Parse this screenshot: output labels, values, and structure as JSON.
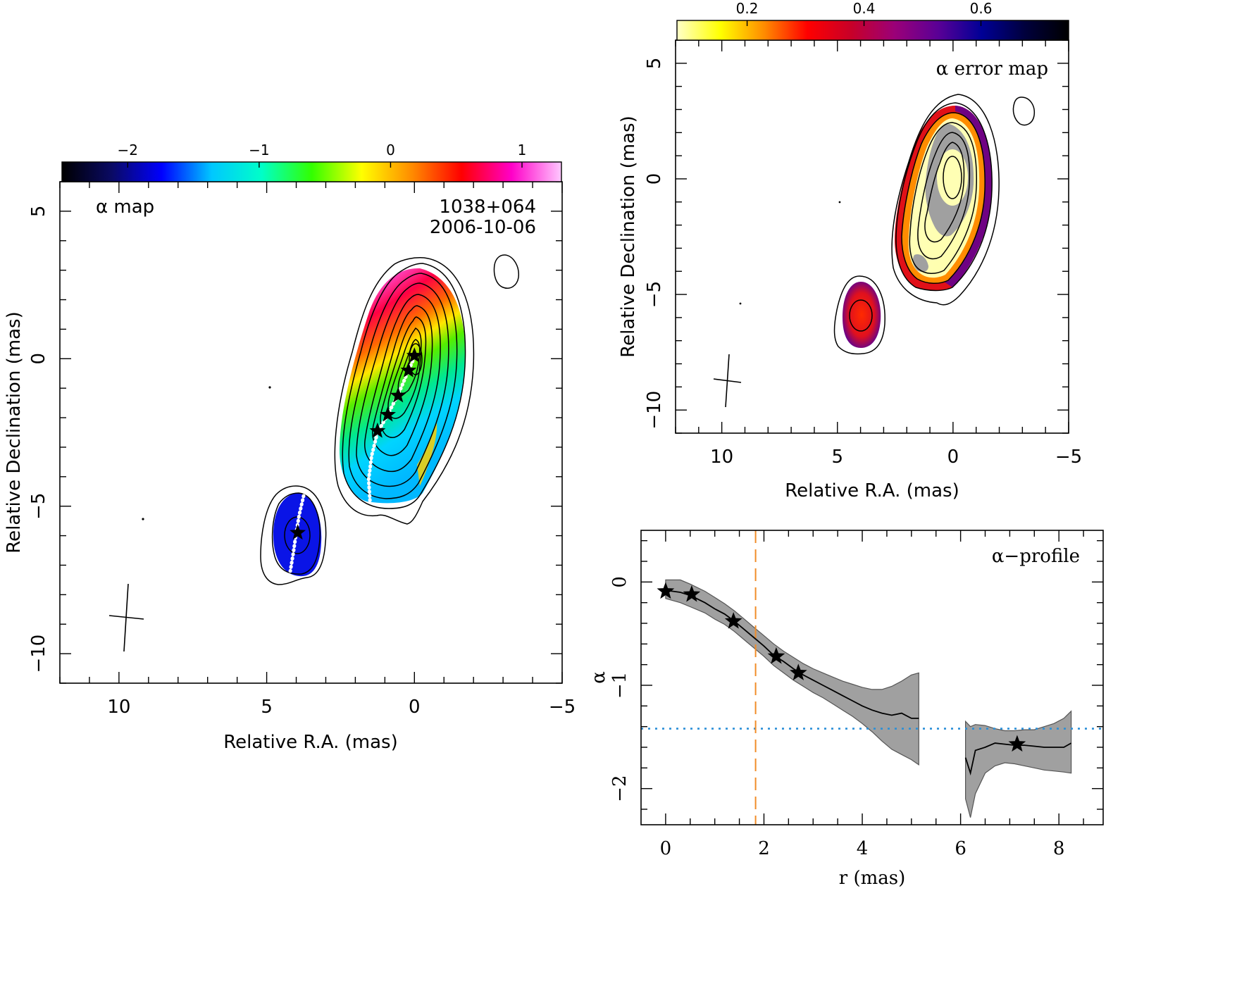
{
  "chart_data": [
    {
      "type": "heatmap",
      "panel": "alpha-map",
      "label": "α map",
      "source": "1038+064",
      "date": "2006-10-06",
      "xlabel": "Relative R.A. (mas)",
      "ylabel": "Relative Declination (mas)",
      "xlim": [
        12,
        -5
      ],
      "ylim": [
        -11,
        6
      ],
      "xticks": [
        10,
        5,
        0,
        -5
      ],
      "yticks": [
        5,
        0,
        -5,
        -10
      ],
      "colorbar": {
        "range": [
          -2.5,
          1.3
        ],
        "ticks": [
          -2,
          -1,
          0,
          1
        ],
        "stops": [
          "#000000",
          "#0a0a64",
          "#0000ff",
          "#00c8ff",
          "#00ffc8",
          "#32ff00",
          "#ffff00",
          "#ff8c00",
          "#ff0000",
          "#ff00c8",
          "#ffc8ff"
        ]
      },
      "stars": [
        [
          0.0,
          0.1
        ],
        [
          0.2,
          -0.4
        ],
        [
          0.55,
          -1.25
        ],
        [
          0.9,
          -1.9
        ],
        [
          1.25,
          -2.45
        ],
        [
          3.95,
          -5.9
        ]
      ],
      "ridge_line": [
        [
          0.0,
          0.05
        ],
        [
          0.2,
          -0.4
        ],
        [
          0.5,
          -1.1
        ],
        [
          0.9,
          -1.9
        ],
        [
          1.25,
          -2.5
        ],
        [
          1.45,
          -3.3
        ],
        [
          1.55,
          -4.1
        ],
        [
          1.5,
          -4.9
        ]
      ],
      "ridge_line_2": [
        [
          3.75,
          -4.65
        ],
        [
          3.9,
          -5.3
        ],
        [
          4.0,
          -5.9
        ],
        [
          4.1,
          -6.6
        ],
        [
          4.2,
          -7.2
        ]
      ]
    },
    {
      "type": "heatmap",
      "panel": "alpha-error-map",
      "label": "α error map",
      "xlabel": "Relative R.A. (mas)",
      "ylabel": "Relative Declination (mas)",
      "xlim": [
        12,
        -5
      ],
      "ylim": [
        -11,
        6
      ],
      "xticks": [
        10,
        5,
        0,
        -5
      ],
      "yticks": [
        5,
        0,
        -5,
        -10
      ],
      "colorbar": {
        "range": [
          0.08,
          0.75
        ],
        "ticks": [
          0.2,
          0.4,
          0.6
        ],
        "stops": [
          "#ffffc8",
          "#ffff00",
          "#ff8c00",
          "#ff0000",
          "#c80028",
          "#9b0078",
          "#5a0096",
          "#000096",
          "#00003c",
          "#000000"
        ]
      }
    },
    {
      "type": "line",
      "panel": "alpha-profile",
      "label": "α−profile",
      "xlabel": "r (mas)",
      "ylabel": "α",
      "xlim": [
        -0.5,
        8.9
      ],
      "ylim": [
        -2.35,
        0.5
      ],
      "xticks": [
        0,
        2,
        4,
        6,
        8
      ],
      "yticks": [
        0,
        -1,
        -2
      ],
      "series": [
        {
          "x": [
            0,
            0.3,
            0.5,
            0.8,
            1.0,
            1.2,
            1.4,
            1.6,
            1.8,
            2.0,
            2.2,
            2.4,
            2.6,
            2.8,
            3.0,
            3.2,
            3.4,
            3.6,
            3.8,
            4.0,
            4.2,
            4.4,
            4.6,
            4.8,
            5.0,
            5.15
          ],
          "values": [
            -0.08,
            -0.1,
            -0.13,
            -0.2,
            -0.26,
            -0.31,
            -0.38,
            -0.46,
            -0.54,
            -0.62,
            -0.71,
            -0.77,
            -0.84,
            -0.9,
            -0.95,
            -1.0,
            -1.05,
            -1.1,
            -1.15,
            -1.2,
            -1.24,
            -1.27,
            -1.29,
            -1.27,
            -1.32,
            -1.32
          ],
          "upper": [
            0.02,
            0.02,
            -0.02,
            -0.09,
            -0.15,
            -0.21,
            -0.28,
            -0.36,
            -0.44,
            -0.52,
            -0.6,
            -0.67,
            -0.73,
            -0.79,
            -0.84,
            -0.88,
            -0.92,
            -0.96,
            -0.99,
            -1.02,
            -1.04,
            -1.04,
            -1.01,
            -0.96,
            -0.9,
            -0.88
          ],
          "lower": [
            -0.16,
            -0.2,
            -0.24,
            -0.3,
            -0.36,
            -0.41,
            -0.48,
            -0.56,
            -0.64,
            -0.72,
            -0.81,
            -0.88,
            -0.95,
            -1.01,
            -1.07,
            -1.12,
            -1.18,
            -1.24,
            -1.3,
            -1.37,
            -1.45,
            -1.54,
            -1.62,
            -1.67,
            -1.72,
            -1.77
          ]
        },
        {
          "x": [
            6.1,
            6.2,
            6.3,
            6.5,
            6.7,
            6.9,
            7.1,
            7.3,
            7.5,
            7.7,
            7.9,
            8.1,
            8.25
          ],
          "values": [
            -1.7,
            -1.85,
            -1.63,
            -1.6,
            -1.56,
            -1.57,
            -1.58,
            -1.58,
            -1.59,
            -1.6,
            -1.6,
            -1.6,
            -1.56
          ],
          "upper": [
            -1.35,
            -1.4,
            -1.38,
            -1.39,
            -1.42,
            -1.44,
            -1.44,
            -1.43,
            -1.43,
            -1.4,
            -1.37,
            -1.32,
            -1.25
          ],
          "lower": [
            -2.1,
            -2.28,
            -2.05,
            -1.85,
            -1.78,
            -1.75,
            -1.76,
            -1.78,
            -1.8,
            -1.82,
            -1.83,
            -1.84,
            -1.85
          ]
        }
      ],
      "stars": [
        [
          0.0,
          -0.09
        ],
        [
          0.53,
          -0.12
        ],
        [
          1.38,
          -0.38
        ],
        [
          2.25,
          -0.72
        ],
        [
          2.7,
          -0.88
        ],
        [
          7.15,
          -1.57
        ]
      ],
      "vline_x": 1.83,
      "hline_y": -1.42
    }
  ]
}
